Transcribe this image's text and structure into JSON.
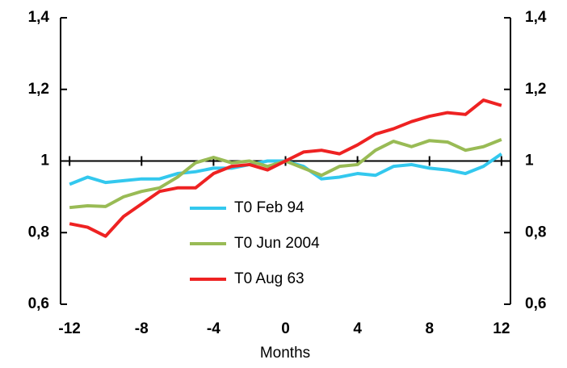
{
  "chart_data": {
    "type": "line",
    "x_label": "Months",
    "x": [
      -12,
      -11,
      -10,
      -9,
      -8,
      -7,
      -6,
      -5,
      -4,
      -3,
      -2,
      -1,
      0,
      1,
      2,
      3,
      4,
      5,
      6,
      7,
      8,
      9,
      10,
      11,
      12
    ],
    "series": [
      {
        "name": "T0 Feb 94",
        "color": "#33c8ee",
        "values": [
          0.935,
          0.955,
          0.94,
          0.945,
          0.95,
          0.95,
          0.965,
          0.97,
          0.98,
          0.98,
          0.99,
          1.0,
          1.0,
          0.985,
          0.95,
          0.955,
          0.965,
          0.96,
          0.985,
          0.99,
          0.98,
          0.975,
          0.965,
          0.985,
          1.02
        ]
      },
      {
        "name": "T0 Jun 2004",
        "color": "#99bb55",
        "values": [
          0.87,
          0.875,
          0.873,
          0.9,
          0.915,
          0.925,
          0.955,
          0.995,
          1.01,
          0.995,
          1.0,
          0.985,
          1.0,
          0.98,
          0.96,
          0.985,
          0.99,
          1.03,
          1.055,
          1.04,
          1.057,
          1.053,
          1.03,
          1.04,
          1.06
        ]
      },
      {
        "name": "T0 Aug 63",
        "color": "#ee2222",
        "values": [
          0.825,
          0.815,
          0.79,
          0.845,
          0.88,
          0.915,
          0.925,
          0.925,
          0.965,
          0.985,
          0.99,
          0.975,
          1.0,
          1.025,
          1.03,
          1.02,
          1.045,
          1.075,
          1.09,
          1.11,
          1.125,
          1.135,
          1.13,
          1.17,
          1.155
        ]
      }
    ],
    "xlim": [
      -12.5,
      12.5
    ],
    "xticks": [
      -12,
      -8,
      -4,
      0,
      4,
      8,
      12
    ],
    "ylim": [
      0.6,
      1.4
    ],
    "yticks": [
      {
        "value": 0.6,
        "label": "0,6"
      },
      {
        "value": 0.8,
        "label": "0,8"
      },
      1,
      {
        "value": 1.2,
        "label": "1,2"
      },
      {
        "value": 1.4,
        "label": "1,4"
      }
    ],
    "y2ticks": [
      {
        "value": 0.6,
        "label": "0,6"
      },
      {
        "value": 0.8,
        "label": "0,8"
      },
      1,
      {
        "value": 1.2,
        "label": "1,2"
      },
      {
        "value": 1.4,
        "label": "1,4"
      }
    ],
    "reference_line": 1,
    "legend": "center"
  }
}
